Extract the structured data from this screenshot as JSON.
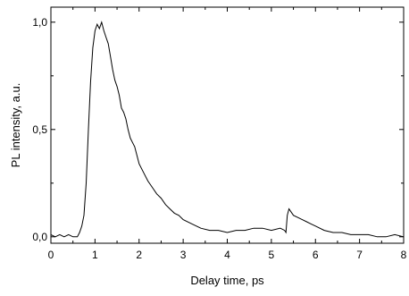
{
  "chart_data": {
    "type": "line",
    "title": "",
    "xlabel": "Delay time, ps",
    "ylabel": "PL intensity, a.u.",
    "xlim": [
      0,
      8
    ],
    "ylim": [
      -0.03,
      1.07
    ],
    "grid": false,
    "legend": "none",
    "x_ticks": [
      "0",
      "1",
      "2",
      "3",
      "4",
      "5",
      "6",
      "7",
      "8"
    ],
    "y_ticks": [
      "0,0",
      "0,5",
      "1,0"
    ],
    "series": [
      {
        "name": "",
        "color": "#000000",
        "x": [
          0.0,
          0.1,
          0.2,
          0.3,
          0.4,
          0.5,
          0.6,
          0.65,
          0.7,
          0.75,
          0.8,
          0.85,
          0.9,
          0.95,
          1.0,
          1.05,
          1.1,
          1.15,
          1.2,
          1.25,
          1.3,
          1.35,
          1.4,
          1.45,
          1.5,
          1.55,
          1.6,
          1.65,
          1.7,
          1.75,
          1.8,
          1.85,
          1.9,
          1.95,
          2.0,
          2.1,
          2.2,
          2.3,
          2.4,
          2.5,
          2.6,
          2.7,
          2.8,
          2.9,
          3.0,
          3.2,
          3.4,
          3.6,
          3.8,
          4.0,
          4.2,
          4.4,
          4.6,
          4.8,
          5.0,
          5.2,
          5.3,
          5.33,
          5.36,
          5.4,
          5.5,
          5.6,
          5.7,
          5.8,
          5.9,
          6.0,
          6.2,
          6.4,
          6.6,
          6.8,
          7.0,
          7.2,
          7.4,
          7.6,
          7.8,
          8.0
        ],
        "values": [
          0.01,
          0.0,
          0.01,
          0.0,
          0.01,
          0.0,
          0.0,
          0.02,
          0.05,
          0.1,
          0.25,
          0.5,
          0.72,
          0.88,
          0.96,
          0.99,
          0.97,
          1.0,
          0.96,
          0.93,
          0.9,
          0.84,
          0.78,
          0.73,
          0.7,
          0.66,
          0.6,
          0.58,
          0.55,
          0.5,
          0.46,
          0.44,
          0.42,
          0.38,
          0.34,
          0.3,
          0.26,
          0.23,
          0.2,
          0.18,
          0.15,
          0.13,
          0.11,
          0.1,
          0.08,
          0.06,
          0.04,
          0.03,
          0.03,
          0.02,
          0.03,
          0.03,
          0.04,
          0.04,
          0.03,
          0.04,
          0.03,
          0.02,
          0.1,
          0.13,
          0.1,
          0.09,
          0.08,
          0.07,
          0.06,
          0.05,
          0.03,
          0.02,
          0.02,
          0.01,
          0.01,
          0.01,
          0.0,
          0.0,
          0.01,
          0.0
        ]
      }
    ]
  }
}
